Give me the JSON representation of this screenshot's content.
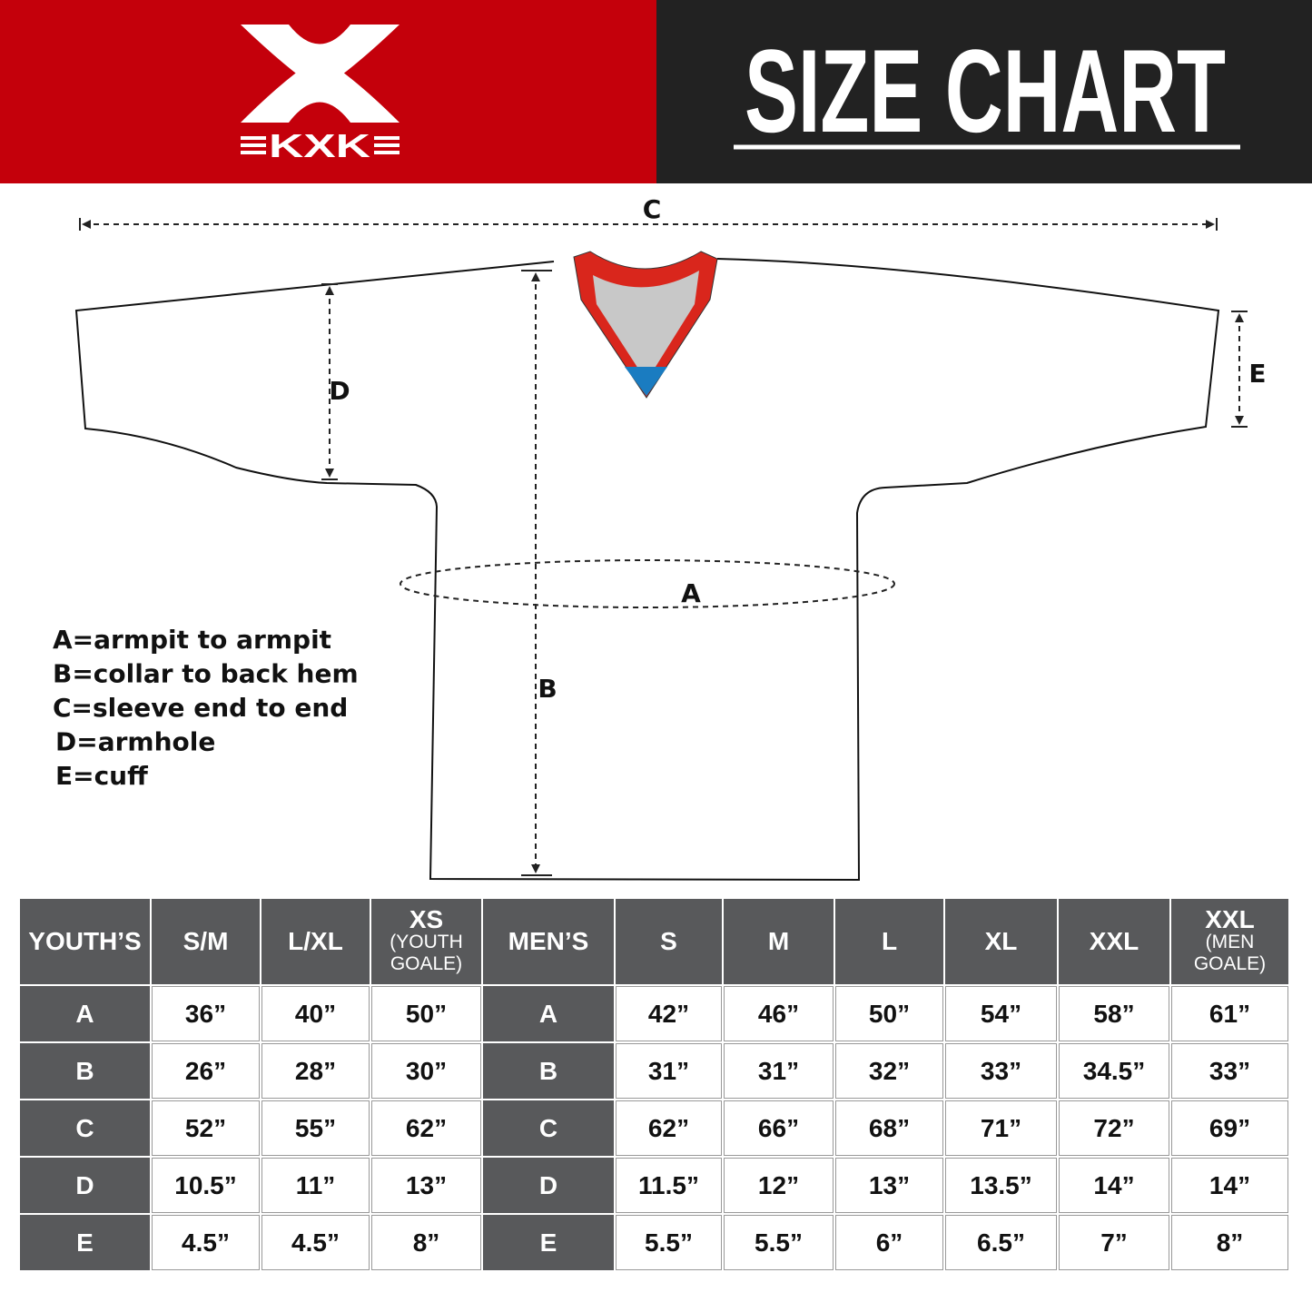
{
  "header": {
    "logo": "KXK",
    "title": "SIZE CHART"
  },
  "diagram": {
    "labels": {
      "c": "C",
      "d": "D",
      "a": "A",
      "b": "B",
      "e": "E"
    },
    "legend": [
      "A=armpit to armpit",
      "B=collar to back hem",
      "C=sleeve end to end",
      "D=armhole",
      "E=cuff"
    ]
  },
  "table": {
    "header": [
      [
        "YOUTH’S"
      ],
      [
        "S/M"
      ],
      [
        "L/XL"
      ],
      [
        "XS",
        "(YOUTH",
        "GOALE)"
      ],
      [
        "MEN’S"
      ],
      [
        "S"
      ],
      [
        "M"
      ],
      [
        "L"
      ],
      [
        "XL"
      ],
      [
        "XXL"
      ],
      [
        "XXL",
        "(MEN",
        "GOALE)"
      ]
    ],
    "rows": [
      [
        "A",
        "36”",
        "40”",
        "50”",
        "A",
        "42”",
        "46”",
        "50”",
        "54”",
        "58”",
        "61”"
      ],
      [
        "B",
        "26”",
        "28”",
        "30”",
        "B",
        "31”",
        "31”",
        "32”",
        "33”",
        "34.5”",
        "33”"
      ],
      [
        "C",
        "52”",
        "55”",
        "62”",
        "C",
        "62”",
        "66”",
        "68”",
        "71”",
        "72”",
        "69”"
      ],
      [
        "D",
        "10.5”",
        "11”",
        "13”",
        "D",
        "11.5”",
        "12”",
        "13”",
        "13.5”",
        "14”",
        "14”"
      ],
      [
        "E",
        "4.5”",
        "4.5”",
        "8”",
        "E",
        "5.5”",
        "5.5”",
        "6”",
        "6.5”",
        "7”",
        "8”"
      ]
    ]
  }
}
